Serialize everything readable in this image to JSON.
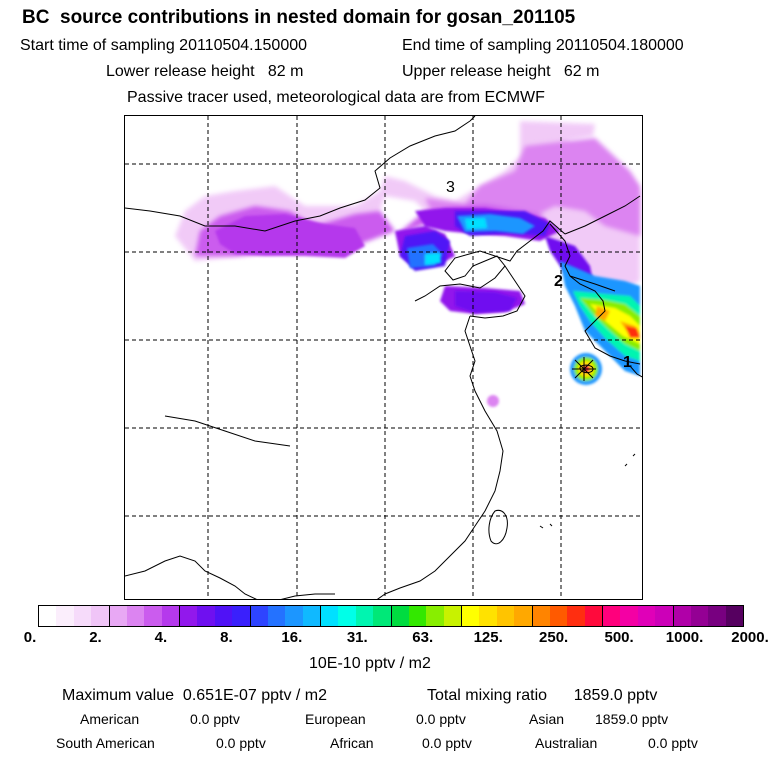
{
  "header": {
    "title": "BC  source contributions in nested domain for gosan_201105",
    "start": "Start time of sampling 20110504.150000",
    "end": "End time of sampling 20110504.180000",
    "lower": "Lower release height   82 m",
    "upper": "Upper release height   62 m",
    "tracer": "Passive tracer used, meteorological data are from ECMWF"
  },
  "map": {
    "labels": [
      "3",
      "2",
      "1"
    ],
    "grid": "dashed",
    "station_marker": "asterisk"
  },
  "colorbar": {
    "colors": [
      "#ffffff",
      "#fbeefc",
      "#f6dbfa",
      "#f0c5f7",
      "#e8a8f4",
      "#dc84f1",
      "#cb5cee",
      "#b539ec",
      "#9218ec",
      "#6f10f0",
      "#5012f6",
      "#3a20fc",
      "#2e44ff",
      "#2472ff",
      "#1c96ff",
      "#10b9ff",
      "#00e0ff",
      "#00ffe8",
      "#00f5b0",
      "#00e878",
      "#00dc40",
      "#33e800",
      "#88ee00",
      "#c8f200",
      "#ffff00",
      "#ffe200",
      "#ffc400",
      "#ffa800",
      "#ff8400",
      "#ff5a00",
      "#ff2e10",
      "#ff0a3c",
      "#ff007c",
      "#f400a4",
      "#e000b8",
      "#cc00b8",
      "#b000a8",
      "#940094",
      "#780080",
      "#560060"
    ],
    "ticks": [
      "0.",
      "2.",
      "4.",
      "8.",
      "16.",
      "31.",
      "63.",
      "125.",
      "250.",
      "500.",
      "1000.",
      "2000."
    ],
    "unit": "10E-10 pptv / m2"
  },
  "summary": {
    "max_label": "Maximum value  0.651E-07 pptv / m2",
    "total_label": "Total mixing ratio      1859.0 pptv",
    "american_label": "American",
    "american_value": "0.0 pptv",
    "european_label": "European",
    "european_value": "0.0 pptv",
    "asian_label": "Asian",
    "asian_value": "1859.0 pptv",
    "south_american_label": "South American",
    "south_american_value": "0.0 pptv",
    "african_label": "African",
    "african_value": "0.0 pptv",
    "australian_label": "Australian",
    "australian_value": "0.0 pptv"
  }
}
